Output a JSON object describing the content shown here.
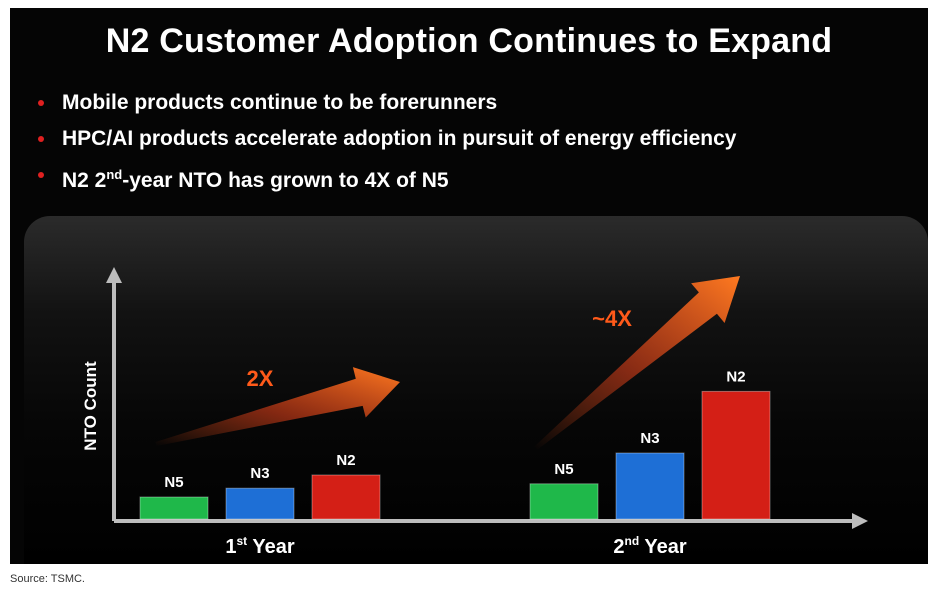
{
  "slide": {
    "title": "N2 Customer Adoption Continues to Expand",
    "bullets": [
      {
        "parts": [
          "Mobile products continue to be forerunners"
        ]
      },
      {
        "parts": [
          "HPC/AI products accelerate adoption in pursuit of energy efficiency"
        ]
      },
      {
        "parts": [
          "N2 2",
          "nd",
          "-year NTO has grown to 4X of N5"
        ]
      }
    ]
  },
  "chart_data": {
    "type": "bar",
    "ylabel": "NTO Count",
    "xlabel": "",
    "categories": [
      {
        "label": "1",
        "sup": "st",
        "rest": " Year"
      },
      {
        "label": "2",
        "sup": "nd",
        "rest": " Year"
      }
    ],
    "series": [
      {
        "name": "N5",
        "color": "#1fb84a",
        "values": [
          1,
          1.6
        ]
      },
      {
        "name": "N3",
        "color": "#1e6fd6",
        "values": [
          1.4,
          3
        ]
      },
      {
        "name": "N2",
        "color": "#d41f16",
        "values": [
          2,
          5.8
        ]
      }
    ],
    "annotations": [
      "2X",
      "~4X"
    ],
    "arrow_color": "#ff5a1a",
    "grid": false
  },
  "source": "Source: TSMC."
}
